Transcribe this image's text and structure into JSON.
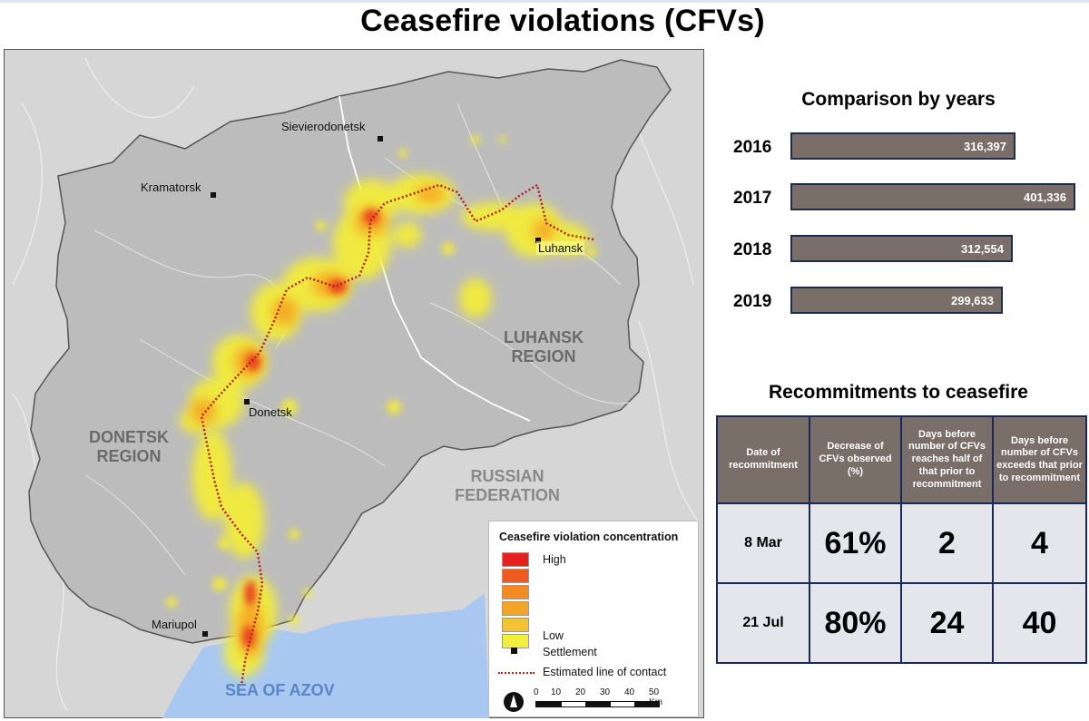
{
  "title": "Ceasefire violations (CFVs)",
  "map": {
    "cities": [
      {
        "name": "Sievierodonetsk"
      },
      {
        "name": "Kramatorsk"
      },
      {
        "name": "Luhansk"
      },
      {
        "name": "Donetsk"
      },
      {
        "name": "Mariupol"
      }
    ],
    "regions": {
      "donetsk": [
        "DONETSK",
        "REGION"
      ],
      "luhansk": [
        "LUHANSK",
        "REGION"
      ],
      "russia": [
        "RUSSIAN",
        "FEDERATION"
      ],
      "sea": "SEA OF AZOV"
    },
    "colors": {
      "land": "#bcbcbc",
      "land_outside": "#d6d6d6",
      "sea": "#a8c8f2",
      "contact_line": "#b22020",
      "heat_low": "#f2ec3a",
      "heat_mid": "#f6a623",
      "heat_high": "#e8321e"
    }
  },
  "legend": {
    "title": "Ceasefire violation concentration",
    "high": "High",
    "low": "Low",
    "settlement": "Settlement",
    "line": "Estimated line of contact",
    "swatch_colors": [
      "#e8201c",
      "#ef5a1e",
      "#f38b22",
      "#f5a524",
      "#f4c232",
      "#f2ee3e"
    ],
    "scale": [
      "0",
      "10",
      "20",
      "30",
      "40",
      "50 Km"
    ]
  },
  "years": {
    "title": "Comparison by years",
    "rows": [
      {
        "year": "2016",
        "value": "316,397"
      },
      {
        "year": "2017",
        "value": "401,336"
      },
      {
        "year": "2018",
        "value": "312,554"
      },
      {
        "year": "2019",
        "value": "299,633"
      }
    ]
  },
  "chart_data": {
    "type": "bar",
    "title": "Comparison by years",
    "categories": [
      "2016",
      "2017",
      "2018",
      "2019"
    ],
    "values": [
      316397,
      401336,
      312554,
      299633
    ],
    "orientation": "horizontal"
  },
  "recommitments": {
    "title": "Recommitments to ceasefire",
    "headers": [
      "Date of recommitment",
      "Decrease of CFVs observed (%)",
      "Days before number of CFVs reaches half of that prior to recommitment",
      "Days before number of CFVs exceeds that prior to recommitment"
    ],
    "rows": [
      [
        "8 Mar",
        "61%",
        "2",
        "4"
      ],
      [
        "21 Jul",
        "80%",
        "24",
        "40"
      ]
    ]
  }
}
